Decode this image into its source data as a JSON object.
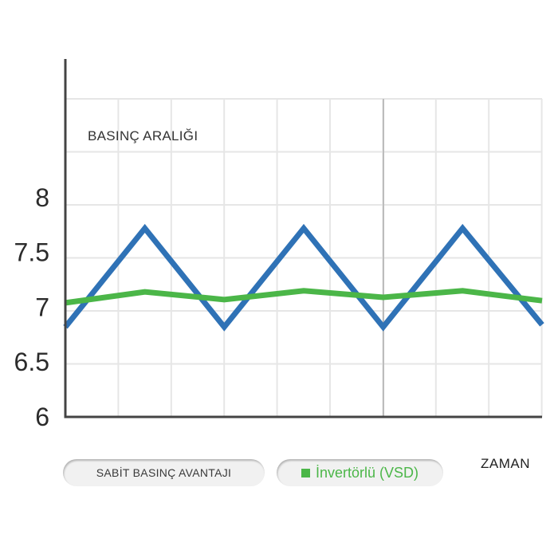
{
  "colors": {
    "fixed_speed": "#2f72b6",
    "vsd": "#4bb648",
    "grid": "#e6e6e6",
    "axis": "#444444",
    "divider": "#bdbdbd"
  },
  "chart_data": {
    "type": "line",
    "ylabel": "BASINÇ ARALIĞI",
    "xlabel": "ZAMAN",
    "y_ticks": [
      "8",
      "7.5",
      "7",
      "6.5",
      "6"
    ],
    "ylim": [
      6,
      8.9
    ],
    "xlim": [
      0,
      9
    ],
    "grid": true,
    "series": [
      {
        "name": "SABİT BASINÇ AVANTAJI",
        "x": [
          0,
          1.5,
          3,
          4.5,
          6,
          7.5,
          9
        ],
        "y": [
          6.82,
          7.72,
          6.82,
          7.72,
          6.82,
          7.72,
          6.84
        ]
      },
      {
        "name": "İnvertörlü (VSD)",
        "x": [
          0,
          1.5,
          3,
          4.5,
          6,
          7.5,
          9
        ],
        "y": [
          7.04,
          7.14,
          7.07,
          7.15,
          7.09,
          7.15,
          7.06
        ]
      }
    ]
  },
  "legend": {
    "fixed_label": "SABİT BASINÇ AVANTAJI",
    "vsd_label": "İnvertörlü (VSD)"
  }
}
